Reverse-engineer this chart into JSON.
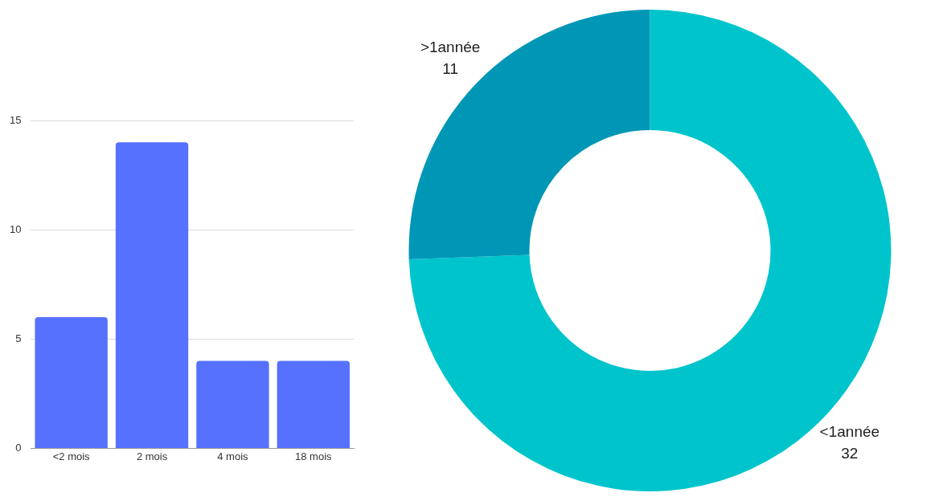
{
  "chart_data": [
    {
      "type": "bar",
      "categories": [
        "<2 mois",
        "2 mois",
        "4 mois",
        "18 mois"
      ],
      "values": [
        6,
        14,
        4,
        4
      ],
      "color": "#5571fe",
      "ylim": [
        0,
        15
      ],
      "yticks": [
        0,
        5,
        10,
        15
      ],
      "grid": "y"
    },
    {
      "type": "donut",
      "categories": [
        "<1année",
        ">1année"
      ],
      "values": [
        32,
        11
      ],
      "colors": [
        "#00c4cc",
        "#0097b7"
      ],
      "data_labels": true
    }
  ]
}
